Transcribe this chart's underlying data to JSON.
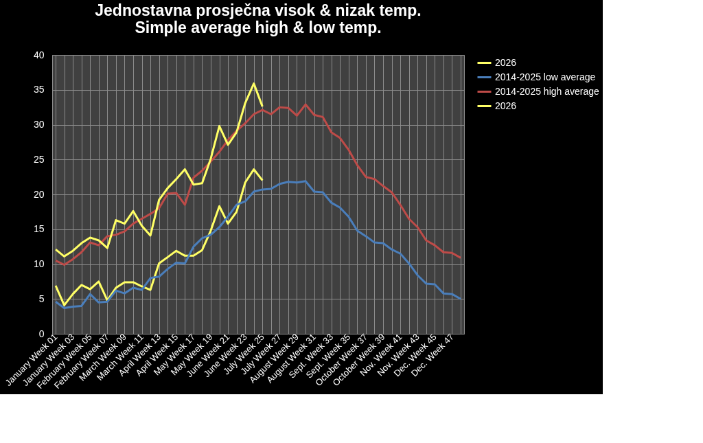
{
  "chart_data": {
    "type": "line",
    "title": [
      "Jednostavna prosječna visok & nizak temp.",
      "Simple average high & low temp."
    ],
    "categories": [
      "January Week 01",
      null,
      "January Week 03",
      null,
      "February Week 05",
      null,
      "February Week 07",
      null,
      "March Week 09",
      null,
      "March Week 11",
      null,
      "April Week 13",
      null,
      "April Week 15",
      null,
      "May Week 17",
      null,
      "May Week 19",
      null,
      "June Week 21",
      null,
      "June Week 23",
      null,
      "July Week 25",
      null,
      "July Week 27",
      null,
      "August Week 29",
      null,
      "August Week 31",
      null,
      "Sept. Week 33",
      null,
      "Sept. Week 35",
      null,
      "October Week 37",
      null,
      "October Week 39",
      null,
      "Nov. Week 41",
      null,
      "Nov. Week 43",
      null,
      "Dec. Week 45",
      null,
      "Dec. Week 47",
      null
    ],
    "series": [
      {
        "name": "2026",
        "color": "#ffff66",
        "values": [
          6.9,
          4.1,
          5.7,
          7.0,
          6.4,
          7.5,
          4.8,
          6.6,
          7.4,
          7.4,
          6.8,
          6.3,
          10.1,
          11.0,
          11.9,
          11.2,
          11.2,
          12.0,
          14.8,
          18.3,
          15.8,
          17.5,
          21.7,
          23.6,
          22.0,
          null,
          null,
          null,
          null,
          null,
          null,
          null,
          null,
          null,
          null,
          null,
          null,
          null,
          null,
          null,
          null,
          null,
          null,
          null,
          null,
          null,
          null,
          null
        ]
      },
      {
        "name": "2014-2025 low average",
        "color": "#4a7ebb",
        "values": [
          4.6,
          3.7,
          3.9,
          4.0,
          5.7,
          4.5,
          4.6,
          6.2,
          5.8,
          6.6,
          6.3,
          8.0,
          8.2,
          9.3,
          10.2,
          10.1,
          12.5,
          13.7,
          14.2,
          15.3,
          16.8,
          18.5,
          19.0,
          20.4,
          20.7,
          20.8,
          21.5,
          21.8,
          21.7,
          21.9,
          20.4,
          20.3,
          18.8,
          18.1,
          16.8,
          14.8,
          14.0,
          13.1,
          13.0,
          12.1,
          11.5,
          10.1,
          8.4,
          7.2,
          7.1,
          5.8,
          5.7,
          5.0
        ]
      },
      {
        "name": "2014-2025 high average",
        "color": "#be4b48",
        "values": [
          10.5,
          9.9,
          10.7,
          11.7,
          13.1,
          12.7,
          14.0,
          14.2,
          14.7,
          15.8,
          16.5,
          17.2,
          18.0,
          20.1,
          20.2,
          18.5,
          22.4,
          23.4,
          24.7,
          26.1,
          27.8,
          29.1,
          30.2,
          31.5,
          32.1,
          31.5,
          32.5,
          32.4,
          31.3,
          32.9,
          31.4,
          31.1,
          28.9,
          28.1,
          26.4,
          24.2,
          22.5,
          22.2,
          21.2,
          20.3,
          18.5,
          16.5,
          15.3,
          13.4,
          12.7,
          11.7,
          11.6,
          10.9
        ]
      },
      {
        "name": "2026",
        "color": "#ffff66",
        "values": [
          12.1,
          11.1,
          11.9,
          13.0,
          13.8,
          13.4,
          12.3,
          16.3,
          15.8,
          17.6,
          15.5,
          14.1,
          19.2,
          20.9,
          22.2,
          23.6,
          21.4,
          21.6,
          25.1,
          29.8,
          27.1,
          28.9,
          33.1,
          35.9,
          32.6,
          null,
          null,
          null,
          null,
          null,
          null,
          null,
          null,
          null,
          null,
          null,
          null,
          null,
          null,
          null,
          null,
          null,
          null,
          null,
          null,
          null,
          null,
          null
        ]
      }
    ],
    "ylim": [
      0,
      40
    ],
    "yticks": [
      0,
      5,
      10,
      15,
      20,
      25,
      30,
      35,
      40
    ],
    "grid": true,
    "legend": "right",
    "marker": "none",
    "line_style": "solid"
  }
}
